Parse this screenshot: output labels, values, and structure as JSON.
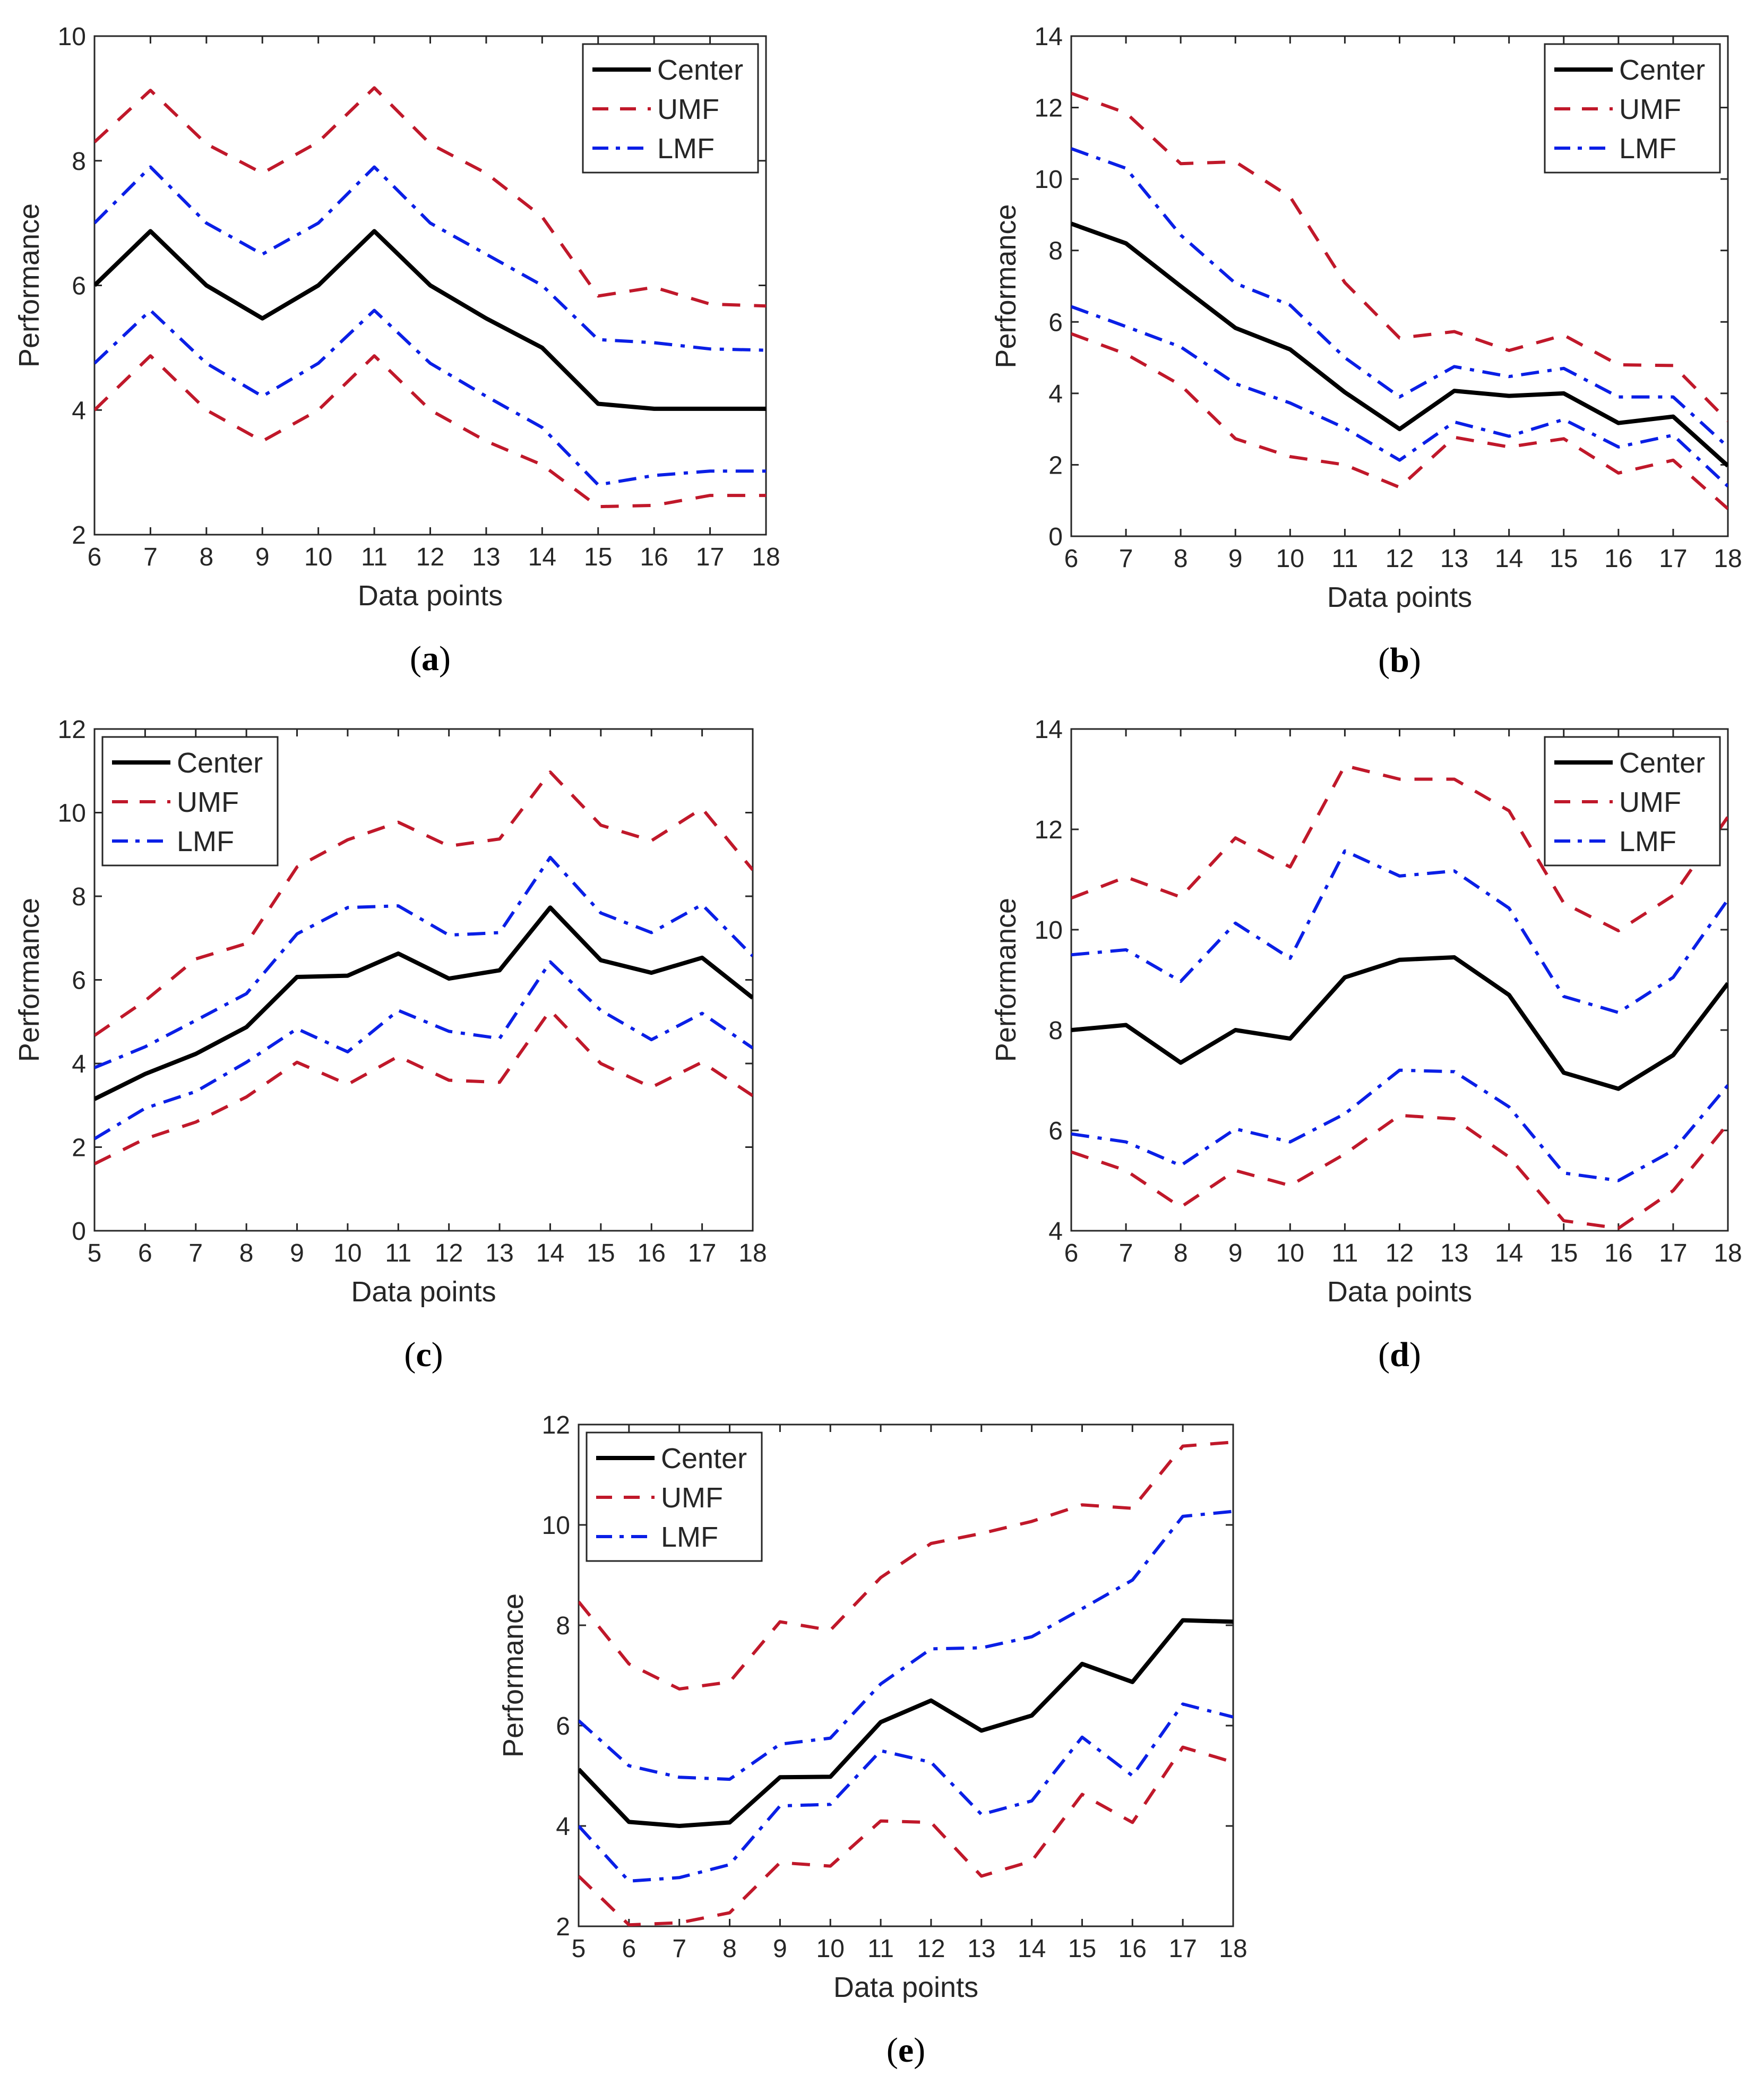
{
  "figure": {
    "colors": {
      "center": "#000000",
      "umf": "#c0182a",
      "lmf": "#0a1fe6",
      "axis": "#262626"
    },
    "legend_labels": {
      "center": "Center",
      "umf": "UMF",
      "lmf": "LMF"
    }
  },
  "chart_data": [
    {
      "type": "line",
      "panel": "a",
      "caption": "a",
      "xlabel": "Data points",
      "ylabel": "Performance",
      "xlim": [
        6,
        18
      ],
      "ylim": [
        2,
        10
      ],
      "xticks": [
        6,
        7,
        8,
        9,
        10,
        11,
        12,
        13,
        14,
        15,
        16,
        17,
        18
      ],
      "yticks": [
        2,
        4,
        6,
        8,
        10
      ],
      "legend": "top-right",
      "x": [
        6,
        7,
        8,
        9,
        10,
        11,
        12,
        13,
        14,
        15,
        16,
        17,
        18
      ],
      "series": [
        {
          "name": "Center",
          "key": "center",
          "values": [
            6.0,
            6.87,
            6.0,
            5.47,
            6.0,
            6.87,
            6.0,
            5.47,
            5.0,
            4.1,
            4.02,
            4.02,
            4.02
          ]
        },
        {
          "name": "UMF",
          "key": "umf",
          "values": [
            8.3,
            9.13,
            8.27,
            7.8,
            8.3,
            9.17,
            8.27,
            7.8,
            7.1,
            5.83,
            5.97,
            5.7,
            5.67
          ]
        },
        {
          "name": "LMF",
          "key": "lmf",
          "values": [
            7.0,
            7.9,
            7.0,
            6.5,
            7.0,
            7.9,
            7.0,
            6.5,
            6.0,
            5.13,
            5.08,
            4.98,
            4.96
          ]
        },
        {
          "name": "LMF",
          "key": "lmf",
          "values": [
            4.75,
            5.6,
            4.75,
            4.22,
            4.75,
            5.6,
            4.75,
            4.22,
            3.72,
            2.8,
            2.95,
            3.02,
            3.02
          ]
        },
        {
          "name": "UMF",
          "key": "umf",
          "values": [
            4.0,
            4.87,
            4.0,
            3.5,
            4.0,
            4.87,
            4.0,
            3.5,
            3.12,
            2.45,
            2.47,
            2.63,
            2.63
          ]
        }
      ]
    },
    {
      "type": "line",
      "panel": "b",
      "caption": "b",
      "xlabel": "Data points",
      "ylabel": "Performance",
      "xlim": [
        6,
        18
      ],
      "ylim": [
        0,
        14
      ],
      "xticks": [
        6,
        7,
        8,
        9,
        10,
        11,
        12,
        13,
        14,
        15,
        16,
        17,
        18
      ],
      "yticks": [
        0,
        2,
        4,
        6,
        8,
        10,
        12,
        14
      ],
      "legend": "top-right",
      "x": [
        6,
        7,
        8,
        9,
        10,
        11,
        12,
        13,
        14,
        15,
        16,
        17,
        18
      ],
      "series": [
        {
          "name": "Center",
          "key": "center",
          "values": [
            8.75,
            8.2,
            7.0,
            5.83,
            5.23,
            4.03,
            3.0,
            4.07,
            3.93,
            4.0,
            3.17,
            3.35,
            1.97
          ]
        },
        {
          "name": "UMF",
          "key": "umf",
          "values": [
            12.4,
            11.85,
            10.43,
            10.48,
            9.5,
            7.1,
            5.55,
            5.73,
            5.2,
            5.63,
            4.8,
            4.78,
            3.23
          ]
        },
        {
          "name": "LMF",
          "key": "lmf",
          "values": [
            10.85,
            10.3,
            8.43,
            7.08,
            6.47,
            5.0,
            3.9,
            4.75,
            4.47,
            4.7,
            3.9,
            3.9,
            2.5
          ]
        },
        {
          "name": "LMF",
          "key": "lmf",
          "values": [
            6.43,
            5.87,
            5.3,
            4.27,
            3.73,
            3.03,
            2.13,
            3.2,
            2.8,
            3.27,
            2.5,
            2.83,
            1.4
          ]
        },
        {
          "name": "UMF",
          "key": "umf",
          "values": [
            5.67,
            5.1,
            4.23,
            2.73,
            2.23,
            2.0,
            1.37,
            2.77,
            2.5,
            2.73,
            1.77,
            2.13,
            0.77
          ]
        }
      ]
    },
    {
      "type": "line",
      "panel": "c",
      "caption": "c",
      "xlabel": "Data points",
      "ylabel": "Performance",
      "xlim": [
        5,
        18
      ],
      "ylim": [
        0,
        12
      ],
      "xticks": [
        5,
        6,
        7,
        8,
        9,
        10,
        11,
        12,
        13,
        14,
        15,
        16,
        17,
        18
      ],
      "yticks": [
        0,
        2,
        4,
        6,
        8,
        10,
        12
      ],
      "legend": "top-left",
      "x": [
        5,
        6,
        7,
        8,
        9,
        10,
        11,
        12,
        13,
        14,
        15,
        16,
        17,
        18
      ],
      "series": [
        {
          "name": "Center",
          "key": "center",
          "values": [
            3.15,
            3.75,
            4.23,
            4.87,
            6.07,
            6.1,
            6.63,
            6.03,
            6.23,
            7.73,
            6.47,
            6.17,
            6.53,
            5.57
          ]
        },
        {
          "name": "UMF",
          "key": "umf",
          "values": [
            4.67,
            5.5,
            6.5,
            6.87,
            8.7,
            9.35,
            9.77,
            9.2,
            9.37,
            10.97,
            9.7,
            9.33,
            10.1,
            8.63
          ]
        },
        {
          "name": "LMF",
          "key": "lmf",
          "values": [
            3.9,
            4.4,
            5.03,
            5.67,
            7.1,
            7.73,
            7.77,
            7.07,
            7.13,
            8.93,
            7.6,
            7.13,
            7.8,
            6.57
          ]
        },
        {
          "name": "LMF",
          "key": "lmf",
          "values": [
            2.2,
            2.93,
            3.33,
            4.03,
            4.83,
            4.28,
            5.27,
            4.77,
            4.6,
            6.43,
            5.27,
            4.57,
            5.2,
            4.37
          ]
        },
        {
          "name": "UMF",
          "key": "umf",
          "values": [
            1.6,
            2.2,
            2.6,
            3.2,
            4.03,
            3.5,
            4.17,
            3.6,
            3.55,
            5.27,
            4.0,
            3.43,
            4.03,
            3.23
          ]
        }
      ]
    },
    {
      "type": "line",
      "panel": "d",
      "caption": "d",
      "xlabel": "Data points",
      "ylabel": "Performance",
      "xlim": [
        6,
        18
      ],
      "ylim": [
        4,
        14
      ],
      "xticks": [
        6,
        7,
        8,
        9,
        10,
        11,
        12,
        13,
        14,
        15,
        16,
        17,
        18
      ],
      "yticks": [
        4,
        6,
        8,
        10,
        12,
        14
      ],
      "legend": "top-right",
      "x": [
        6,
        7,
        8,
        9,
        10,
        11,
        12,
        13,
        14,
        15,
        16,
        17,
        18
      ],
      "series": [
        {
          "name": "Center",
          "key": "center",
          "values": [
            8.0,
            8.1,
            7.35,
            8.0,
            7.83,
            9.05,
            9.4,
            9.45,
            8.7,
            7.15,
            6.83,
            7.5,
            8.93
          ]
        },
        {
          "name": "UMF",
          "key": "umf",
          "values": [
            10.63,
            11.05,
            10.65,
            11.83,
            11.25,
            13.27,
            13.0,
            13.0,
            12.37,
            10.53,
            9.98,
            10.68,
            12.25
          ]
        },
        {
          "name": "LMF",
          "key": "lmf",
          "values": [
            9.5,
            9.6,
            8.97,
            10.13,
            9.43,
            11.57,
            11.07,
            11.17,
            10.43,
            8.67,
            8.35,
            9.05,
            10.6
          ]
        },
        {
          "name": "LMF",
          "key": "lmf",
          "values": [
            5.93,
            5.77,
            5.3,
            6.03,
            5.77,
            6.33,
            7.2,
            7.17,
            6.47,
            5.15,
            5.0,
            5.6,
            6.9
          ]
        },
        {
          "name": "UMF",
          "key": "umf",
          "values": [
            5.57,
            5.2,
            4.47,
            5.2,
            4.9,
            5.53,
            6.3,
            6.23,
            5.47,
            4.2,
            4.05,
            4.8,
            6.13
          ]
        }
      ]
    },
    {
      "type": "line",
      "panel": "e",
      "caption": "e",
      "xlabel": "Data points",
      "ylabel": "Performance",
      "xlim": [
        5,
        18
      ],
      "ylim": [
        2,
        12
      ],
      "xticks": [
        5,
        6,
        7,
        8,
        9,
        10,
        11,
        12,
        13,
        14,
        15,
        16,
        17,
        18
      ],
      "yticks": [
        2,
        4,
        6,
        8,
        10,
        12
      ],
      "legend": "top-left",
      "x": [
        5,
        6,
        7,
        8,
        9,
        10,
        11,
        12,
        13,
        14,
        15,
        16,
        17,
        18
      ],
      "series": [
        {
          "name": "Center",
          "key": "center",
          "values": [
            5.13,
            4.08,
            4.0,
            4.07,
            4.97,
            4.98,
            6.07,
            6.5,
            5.9,
            6.2,
            7.23,
            6.87,
            8.1,
            8.07
          ]
        },
        {
          "name": "UMF",
          "key": "umf",
          "values": [
            8.47,
            7.23,
            6.73,
            6.87,
            8.07,
            7.9,
            8.95,
            9.63,
            9.83,
            10.07,
            10.4,
            10.33,
            11.57,
            11.65
          ]
        },
        {
          "name": "LMF",
          "key": "lmf",
          "values": [
            6.1,
            5.2,
            4.97,
            4.93,
            5.63,
            5.75,
            6.83,
            7.53,
            7.55,
            7.77,
            8.33,
            8.9,
            10.17,
            10.27
          ]
        },
        {
          "name": "LMF",
          "key": "lmf",
          "values": [
            4.0,
            2.9,
            2.97,
            3.23,
            4.4,
            4.43,
            5.5,
            5.27,
            4.23,
            4.5,
            5.77,
            5.0,
            6.43,
            6.17
          ]
        },
        {
          "name": "UMF",
          "key": "umf",
          "values": [
            3.0,
            2.03,
            2.07,
            2.27,
            3.27,
            3.2,
            4.1,
            4.07,
            3.0,
            3.3,
            4.63,
            4.07,
            5.57,
            5.27
          ]
        }
      ]
    }
  ]
}
